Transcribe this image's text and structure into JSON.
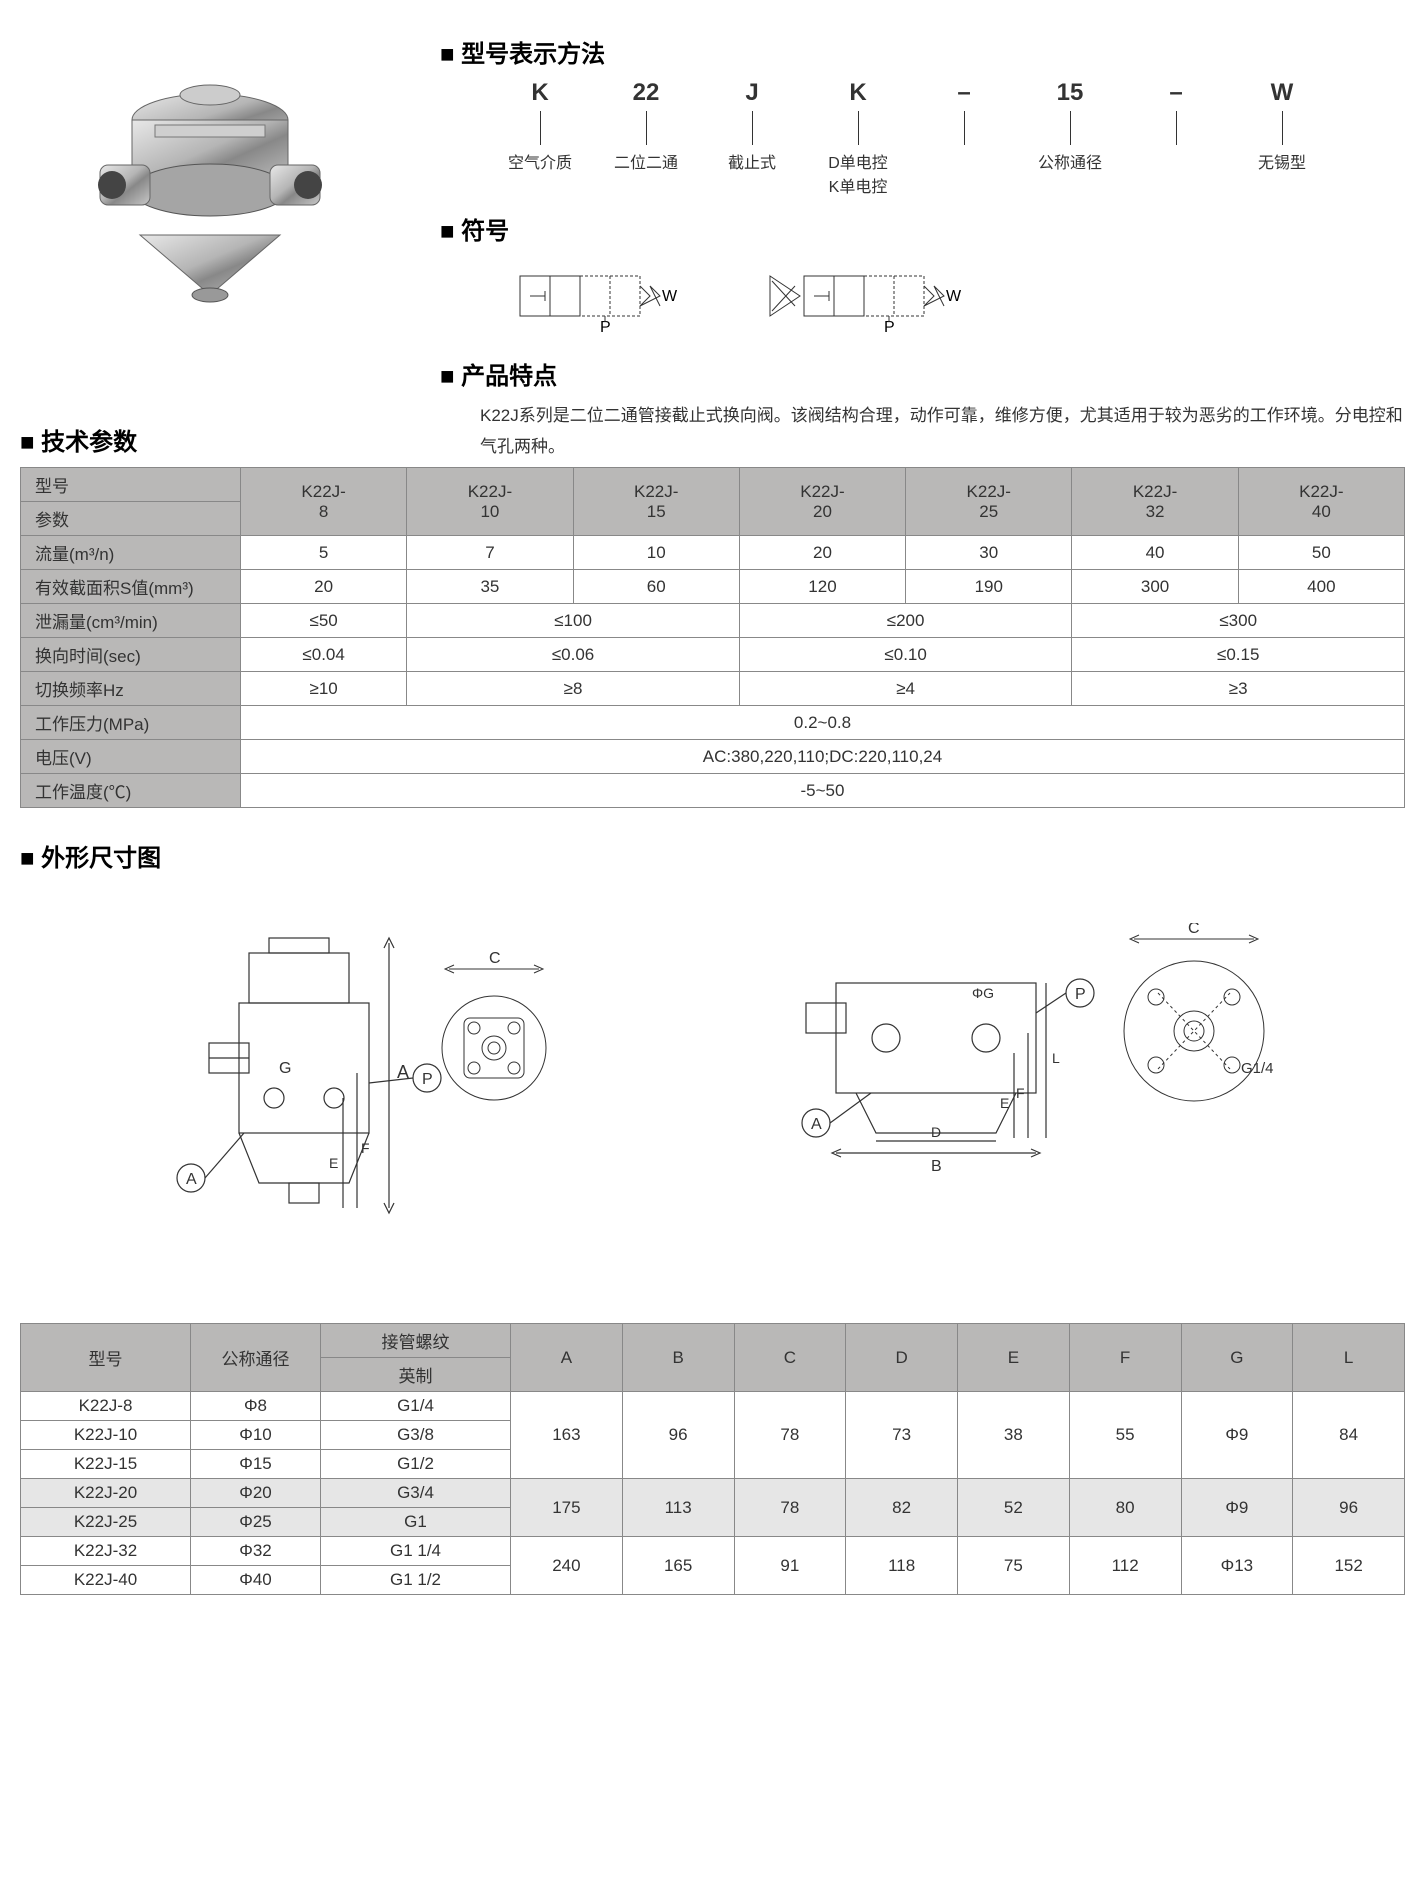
{
  "sections": {
    "model_method": "型号表示方法",
    "symbol": "符号",
    "feature": "产品特点",
    "specs": "技术参数",
    "dims": "外形尺寸图"
  },
  "model_code": [
    {
      "code": "K",
      "desc": "空气介质"
    },
    {
      "code": "22",
      "desc": "二位二通"
    },
    {
      "code": "J",
      "desc": "截止式"
    },
    {
      "code": "K",
      "desc": "D单电控\nK单电控"
    },
    {
      "code": "–",
      "desc": ""
    },
    {
      "code": "15",
      "desc": "公称通径"
    },
    {
      "code": "–",
      "desc": ""
    },
    {
      "code": "W",
      "desc": "无锡型"
    }
  ],
  "feature_text": "K22J系列是二位二通管接截止式换向阀。该阀结构合理，动作可靠，维修方便，尤其适用于较为恶劣的工作环境。分电控和气孔两种。",
  "spec_table": {
    "header": {
      "model": "型号",
      "param": "参数"
    },
    "models": [
      "K22J-\n8",
      "K22J-\n10",
      "K22J-\n15",
      "K22J-\n20",
      "K22J-\n25",
      "K22J-\n32",
      "K22J-\n40"
    ],
    "rows": [
      {
        "label": "流量(m³/n)",
        "cells": [
          {
            "text": "5",
            "span": 1
          },
          {
            "text": "7",
            "span": 1
          },
          {
            "text": "10",
            "span": 1
          },
          {
            "text": "20",
            "span": 1
          },
          {
            "text": "30",
            "span": 1
          },
          {
            "text": "40",
            "span": 1
          },
          {
            "text": "50",
            "span": 1
          }
        ]
      },
      {
        "label": "有效截面积S值(mm³)",
        "cells": [
          {
            "text": "20",
            "span": 1
          },
          {
            "text": "35",
            "span": 1
          },
          {
            "text": "60",
            "span": 1
          },
          {
            "text": "120",
            "span": 1
          },
          {
            "text": "190",
            "span": 1
          },
          {
            "text": "300",
            "span": 1
          },
          {
            "text": "400",
            "span": 1
          }
        ]
      },
      {
        "label": "泄漏量(cm³/min)",
        "cells": [
          {
            "text": "≤50",
            "span": 1
          },
          {
            "text": "≤100",
            "span": 2
          },
          {
            "text": "≤200",
            "span": 2
          },
          {
            "text": "≤300",
            "span": 2
          }
        ]
      },
      {
        "label": "换向时间(sec)",
        "cells": [
          {
            "text": "≤0.04",
            "span": 1
          },
          {
            "text": "≤0.06",
            "span": 2
          },
          {
            "text": "≤0.10",
            "span": 2
          },
          {
            "text": "≤0.15",
            "span": 2
          }
        ]
      },
      {
        "label": "切换频率Hz",
        "cells": [
          {
            "text": "≥10",
            "span": 1
          },
          {
            "text": "≥8",
            "span": 2
          },
          {
            "text": "≥4",
            "span": 2
          },
          {
            "text": "≥3",
            "span": 2
          }
        ]
      },
      {
        "label": "工作压力(MPa)",
        "cells": [
          {
            "text": "0.2~0.8",
            "span": 7
          }
        ]
      },
      {
        "label": "电压(V)",
        "cells": [
          {
            "text": "AC:380,220,110;DC:220,110,24",
            "span": 7
          }
        ]
      },
      {
        "label": "工作温度(℃)",
        "cells": [
          {
            "text": "-5~50",
            "span": 7
          }
        ]
      }
    ]
  },
  "dim_table": {
    "headers": {
      "model": "型号",
      "nominal": "公称通径",
      "thread": "接管螺纹",
      "thread_sub": "英制",
      "cols": [
        "A",
        "B",
        "C",
        "D",
        "E",
        "F",
        "G",
        "L"
      ]
    },
    "groups": [
      {
        "alt": false,
        "rows": [
          {
            "model": "K22J-8",
            "nominal": "Φ8",
            "thread": "G1/4"
          },
          {
            "model": "K22J-10",
            "nominal": "Φ10",
            "thread": "G3/8"
          },
          {
            "model": "K22J-15",
            "nominal": "Φ15",
            "thread": "G1/2"
          }
        ],
        "vals": [
          "163",
          "96",
          "78",
          "73",
          "38",
          "55",
          "Φ9",
          "84"
        ]
      },
      {
        "alt": true,
        "rows": [
          {
            "model": "K22J-20",
            "nominal": "Φ20",
            "thread": "G3/4"
          },
          {
            "model": "K22J-25",
            "nominal": "Φ25",
            "thread": "G1"
          }
        ],
        "vals": [
          "175",
          "113",
          "78",
          "82",
          "52",
          "80",
          "Φ9",
          "96"
        ]
      },
      {
        "alt": false,
        "rows": [
          {
            "model": "K22J-32",
            "nominal": "Φ32",
            "thread": "G1 1/4"
          },
          {
            "model": "K22J-40",
            "nominal": "Φ40",
            "thread": "G1 1/2"
          }
        ],
        "vals": [
          "240",
          "165",
          "91",
          "118",
          "75",
          "112",
          "Φ13",
          "152"
        ]
      }
    ]
  },
  "drawing_labels": {
    "A": "A",
    "B": "B",
    "C": "C",
    "D": "D",
    "E": "E",
    "F": "F",
    "G": "G",
    "L": "L",
    "P": "P",
    "G14": "G1/4",
    "phiG": "ΦG",
    "W": "W",
    "Pport": "P"
  }
}
